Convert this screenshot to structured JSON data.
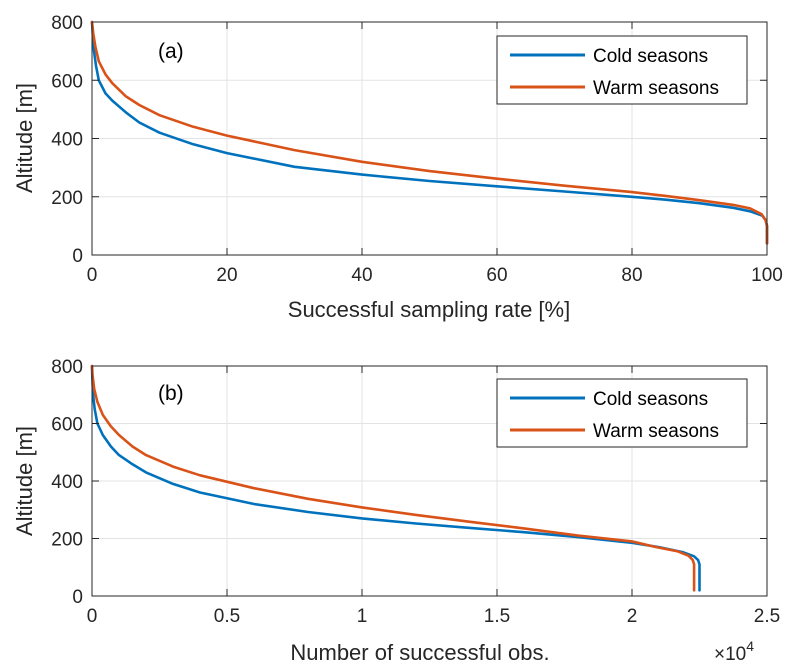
{
  "chart_data": [
    {
      "type": "line",
      "panel_label": "(a)",
      "xlabel": "Successful sampling rate [%]",
      "ylabel": "Altitude [m]",
      "xlim": [
        0,
        100
      ],
      "ylim": [
        0,
        800
      ],
      "xticks": [
        "0",
        "20",
        "40",
        "60",
        "80",
        "100"
      ],
      "yticks": [
        "0",
        "200",
        "400",
        "600",
        "800"
      ],
      "grid": true,
      "legend_position": "top-right",
      "series": [
        {
          "name": "Cold seasons",
          "color": "#0072BD",
          "points": [
            [
              100,
              40
            ],
            [
              100,
              100
            ],
            [
              99.8,
              120
            ],
            [
              99.3,
              135
            ],
            [
              97.5,
              150
            ],
            [
              95,
              162
            ],
            [
              90,
              178
            ],
            [
              85,
              190
            ],
            [
              80,
              200
            ],
            [
              70,
              218
            ],
            [
              60,
              236
            ],
            [
              50,
              254
            ],
            [
              40,
              276
            ],
            [
              30,
              303
            ],
            [
              20,
              350
            ],
            [
              15,
              380
            ],
            [
              10,
              420
            ],
            [
              7,
              455
            ],
            [
              5,
              490
            ],
            [
              3,
              530
            ],
            [
              2,
              555
            ],
            [
              1,
              600
            ],
            [
              0.6,
              650
            ],
            [
              0.3,
              700
            ],
            [
              0.1,
              760
            ],
            [
              0,
              800
            ]
          ]
        },
        {
          "name": "Warm seasons",
          "color": "#D95319",
          "points": [
            [
              100,
              40
            ],
            [
              100,
              100
            ],
            [
              99.8,
              120
            ],
            [
              99.2,
              140
            ],
            [
              97.5,
              160
            ],
            [
              95,
              172
            ],
            [
              90,
              188
            ],
            [
              85,
              203
            ],
            [
              80,
              216
            ],
            [
              70,
              238
            ],
            [
              60,
              262
            ],
            [
              50,
              288
            ],
            [
              40,
              320
            ],
            [
              30,
              360
            ],
            [
              20,
              410
            ],
            [
              15,
              440
            ],
            [
              10,
              480
            ],
            [
              7,
              515
            ],
            [
              5,
              545
            ],
            [
              3,
              590
            ],
            [
              2,
              620
            ],
            [
              1,
              665
            ],
            [
              0.5,
              715
            ],
            [
              0.2,
              760
            ],
            [
              0,
              800
            ]
          ]
        }
      ]
    },
    {
      "type": "line",
      "panel_label": "(b)",
      "xlabel": "Number of successful obs.",
      "ylabel": "Altitude [m]",
      "xlim": [
        0,
        25000
      ],
      "ylim": [
        0,
        800
      ],
      "xticks": [
        "0",
        "0.5",
        "1",
        "1.5",
        "2",
        "2.5"
      ],
      "yticks": [
        "0",
        "200",
        "400",
        "600",
        "800"
      ],
      "x_exponent_label": "×10",
      "x_exponent": "4",
      "grid": true,
      "legend_position": "top-right",
      "series": [
        {
          "name": "Cold seasons",
          "color": "#0072BD",
          "points": [
            [
              22500,
              20
            ],
            [
              22500,
              110
            ],
            [
              22450,
              125
            ],
            [
              22300,
              138
            ],
            [
              21900,
              152
            ],
            [
              21000,
              170
            ],
            [
              20000,
              185
            ],
            [
              18000,
              205
            ],
            [
              16000,
              222
            ],
            [
              14000,
              237
            ],
            [
              12000,
              252
            ],
            [
              10000,
              270
            ],
            [
              8000,
              292
            ],
            [
              6000,
              320
            ],
            [
              4000,
              360
            ],
            [
              3000,
              390
            ],
            [
              2000,
              430
            ],
            [
              1500,
              458
            ],
            [
              1000,
              490
            ],
            [
              700,
              520
            ],
            [
              400,
              560
            ],
            [
              200,
              600
            ],
            [
              100,
              650
            ],
            [
              40,
              700
            ],
            [
              10,
              760
            ],
            [
              0,
              800
            ]
          ]
        },
        {
          "name": "Warm seasons",
          "color": "#D95319",
          "points": [
            [
              22300,
              20
            ],
            [
              22300,
              110
            ],
            [
              22250,
              125
            ],
            [
              22100,
              140
            ],
            [
              21700,
              155
            ],
            [
              20900,
              170
            ],
            [
              20000,
              190
            ],
            [
              18000,
              210
            ],
            [
              16000,
              235
            ],
            [
              14000,
              258
            ],
            [
              12000,
              282
            ],
            [
              10000,
              308
            ],
            [
              8000,
              338
            ],
            [
              6000,
              375
            ],
            [
              4000,
              420
            ],
            [
              3000,
              450
            ],
            [
              2000,
              490
            ],
            [
              1500,
              520
            ],
            [
              1000,
              560
            ],
            [
              700,
              590
            ],
            [
              400,
              630
            ],
            [
              200,
              675
            ],
            [
              80,
              720
            ],
            [
              20,
              770
            ],
            [
              0,
              800
            ]
          ]
        }
      ]
    }
  ]
}
